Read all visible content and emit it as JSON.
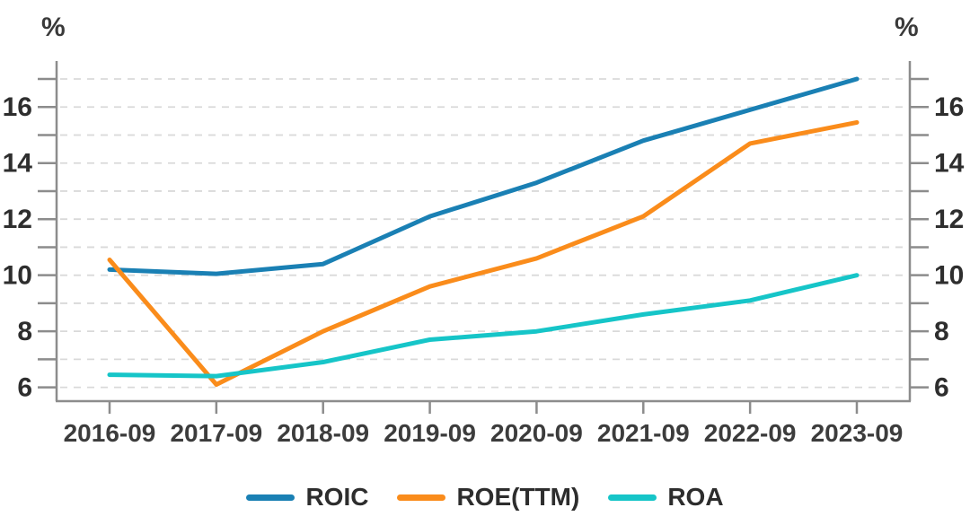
{
  "chart_data": {
    "type": "line",
    "title": "",
    "unit_label_left": "%",
    "unit_label_right": "%",
    "categories": [
      "2016-09",
      "2017-09",
      "2018-09",
      "2019-09",
      "2020-09",
      "2021-09",
      "2022-09",
      "2023-09"
    ],
    "series": [
      {
        "name": "ROIC",
        "color": "#1a80b4",
        "values": [
          10.2,
          10.05,
          10.4,
          12.1,
          13.3,
          14.8,
          15.9,
          17.0
        ]
      },
      {
        "name": "ROE(TTM)",
        "color": "#fa8c1b",
        "values": [
          10.55,
          6.1,
          8.0,
          9.6,
          10.6,
          12.1,
          14.7,
          15.45
        ]
      },
      {
        "name": "ROA",
        "color": "#16c5c8",
        "values": [
          6.45,
          6.4,
          6.9,
          7.7,
          8.0,
          8.6,
          9.1,
          10.0
        ]
      }
    ],
    "y_axis": {
      "tick_min": 6,
      "tick_max": 17,
      "tick_step": 1,
      "labeled_ticks": [
        6,
        8,
        10,
        12,
        14,
        16
      ],
      "mirrored_right_axis": true
    },
    "x_axis": {
      "labels_visible": true
    },
    "grid": {
      "horizontal": true,
      "style": "dashed",
      "color": "#d9d9d9"
    },
    "axis_color": "#8c8c8c",
    "label_color": "#2e2e2e",
    "legend_position": "bottom-center"
  }
}
